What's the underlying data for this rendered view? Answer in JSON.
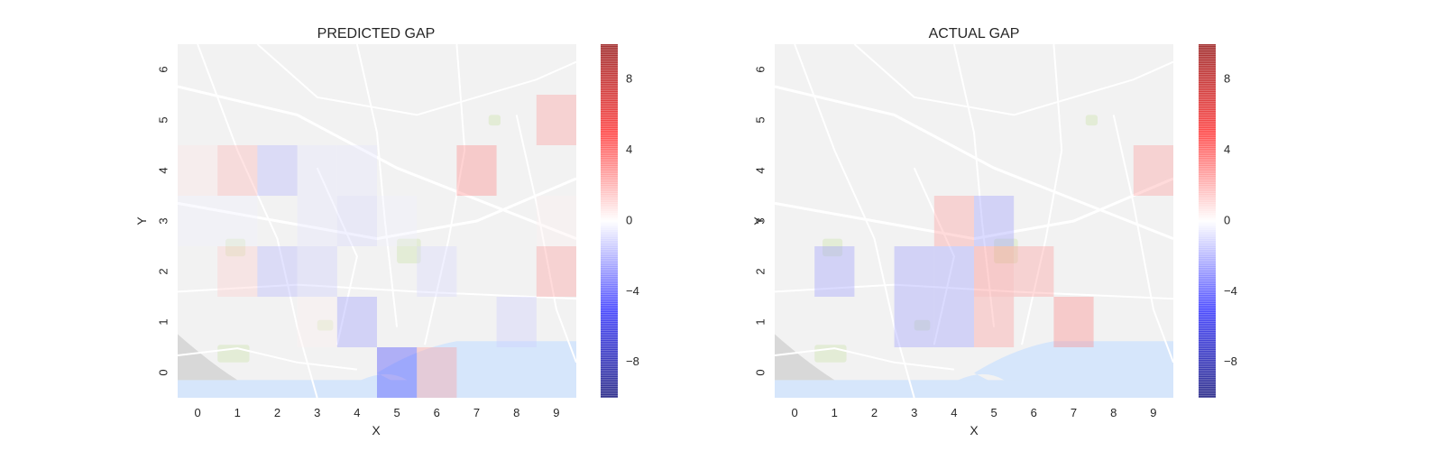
{
  "chart_data": [
    {
      "type": "heatmap",
      "title": "PREDICTED GAP",
      "xlabel": "X",
      "ylabel": "Y",
      "x": [
        "0",
        "1",
        "2",
        "3",
        "4",
        "5",
        "6",
        "7",
        "8",
        "9"
      ],
      "y": [
        "0",
        "1",
        "2",
        "3",
        "4",
        "5",
        "6"
      ],
      "xlim": [
        -0.5,
        9.5
      ],
      "ylim": [
        -0.5,
        6.5
      ],
      "grid": false,
      "background": "street map",
      "colormap": "seismic",
      "vmin": -10,
      "vmax": 10,
      "colorbar_ticks": [
        "8",
        "4",
        "0",
        "−4",
        "−8"
      ],
      "colorbar_values": [
        8,
        4,
        0,
        -4,
        -8
      ],
      "cells": [
        {
          "x": 0,
          "y": 4,
          "value": 0.5
        },
        {
          "x": 1,
          "y": 4,
          "value": 1.5
        },
        {
          "x": 2,
          "y": 4,
          "value": -1.5
        },
        {
          "x": 3,
          "y": 4,
          "value": -0.5
        },
        {
          "x": 4,
          "y": 4,
          "value": -0.5
        },
        {
          "x": 7,
          "y": 4,
          "value": 2.5
        },
        {
          "x": 0,
          "y": 3,
          "value": -0.3
        },
        {
          "x": 1,
          "y": 3,
          "value": -0.3
        },
        {
          "x": 3,
          "y": 3,
          "value": -0.5
        },
        {
          "x": 4,
          "y": 3,
          "value": -0.8
        },
        {
          "x": 5,
          "y": 3,
          "value": -0.3
        },
        {
          "x": 9,
          "y": 3,
          "value": 0.3
        },
        {
          "x": 1,
          "y": 2,
          "value": 1.0
        },
        {
          "x": 2,
          "y": 2,
          "value": -1.5
        },
        {
          "x": 3,
          "y": 2,
          "value": -1.0
        },
        {
          "x": 6,
          "y": 2,
          "value": -0.8
        },
        {
          "x": 9,
          "y": 2,
          "value": 2.0
        },
        {
          "x": 4,
          "y": 1,
          "value": -2.0
        },
        {
          "x": 8,
          "y": 1,
          "value": -1.0
        },
        {
          "x": 3,
          "y": 1,
          "value": 0.3
        },
        {
          "x": 5,
          "y": 0,
          "value": -4.0
        },
        {
          "x": 6,
          "y": 0,
          "value": 2.0
        },
        {
          "x": 9,
          "y": 5,
          "value": 2.0
        }
      ]
    },
    {
      "type": "heatmap",
      "title": "ACTUAL GAP",
      "xlabel": "X",
      "ylabel": "Y",
      "x": [
        "0",
        "1",
        "2",
        "3",
        "4",
        "5",
        "6",
        "7",
        "8",
        "9"
      ],
      "y": [
        "0",
        "1",
        "2",
        "3",
        "4",
        "5",
        "6"
      ],
      "xlim": [
        -0.5,
        9.5
      ],
      "ylim": [
        -0.5,
        6.5
      ],
      "grid": false,
      "background": "street map",
      "colormap": "seismic",
      "vmin": -10,
      "vmax": 10,
      "colorbar_ticks": [
        "8",
        "4",
        "0",
        "−4",
        "−8"
      ],
      "colorbar_values": [
        8,
        4,
        0,
        -4,
        -8
      ],
      "cells": [
        {
          "x": 9,
          "y": 4,
          "value": 2.0
        },
        {
          "x": 4,
          "y": 3,
          "value": 2.0
        },
        {
          "x": 5,
          "y": 3,
          "value": -2.0
        },
        {
          "x": 1,
          "y": 2,
          "value": -2.0
        },
        {
          "x": 3,
          "y": 2,
          "value": -2.0
        },
        {
          "x": 4,
          "y": 2,
          "value": -2.0
        },
        {
          "x": 5,
          "y": 2,
          "value": 2.5
        },
        {
          "x": 6,
          "y": 2,
          "value": 2.0
        },
        {
          "x": 3,
          "y": 1,
          "value": -2.0
        },
        {
          "x": 4,
          "y": 1,
          "value": -2.0
        },
        {
          "x": 5,
          "y": 1,
          "value": 2.0
        },
        {
          "x": 7,
          "y": 1,
          "value": 2.5
        }
      ]
    }
  ]
}
